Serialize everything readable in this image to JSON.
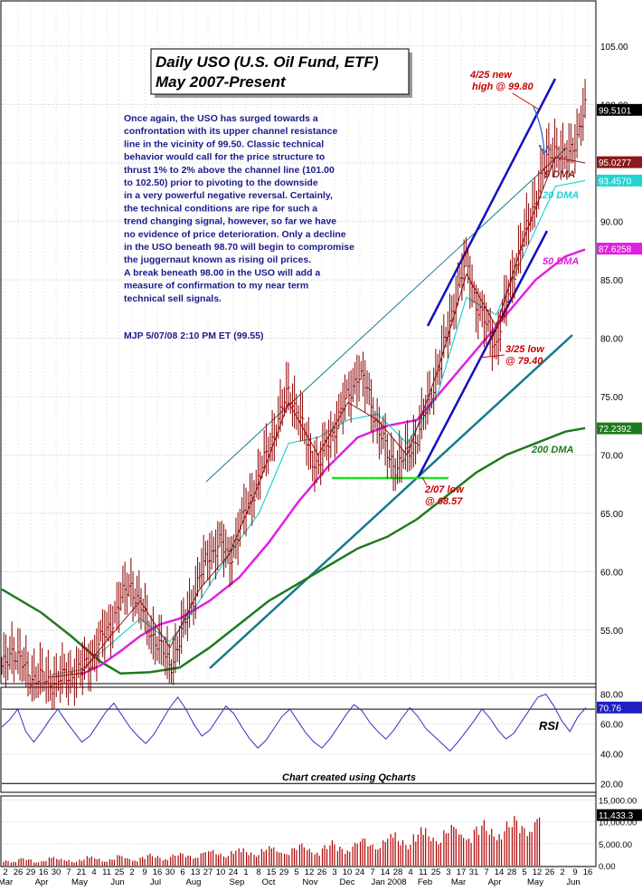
{
  "title_line1": "Daily USO (U.S. Oil Fund, ETF)",
  "title_line2": "May 2007-Present",
  "commentary": [
    "Once again, the USO has surged towards a",
    "confrontation with its upper channel resistance",
    "line in the vicinity of 99.50. Classic technical",
    "behavior would call for the price structure to",
    "thrust 1% to 2% above the channel line (101.00",
    "to 102.50) prior to pivoting to the downside",
    "in a very powerful negative reversal. Certainly,",
    "the technical conditions are ripe for such a",
    "trend changing signal, however, so far we have",
    "no evidence of price deterioration. Only a decline",
    "in the USO beneath 98.70 will begin to compromise",
    "the juggernaut known as rising oil prices.",
    "A break beneath 98.00 in the USO will add a",
    "measure of confirmation to my near term",
    "technical sell signals."
  ],
  "signature": "MJP  5/07/08  2:10 PM ET  (99.55)",
  "footer_credit": "Chart created using Qcharts",
  "colors": {
    "price_bar": "#8b0000",
    "dma9": "#8b1a1a",
    "dma20": "#22d3d3",
    "dma50": "#e020e0",
    "dma200": "#1f7a1f",
    "channel": "#1010c0",
    "long_trend": "#157a8a",
    "support": "#22e022",
    "annotation": "#cc0000",
    "rsi": "#3030c0",
    "volume": "#b00000"
  },
  "chart_data": [
    {
      "type": "candlestick",
      "panel": "price",
      "title": "Daily USO (U.S. Oil Fund, ETF) May 2007-Present",
      "ylim": [
        50.5,
        108.8
      ],
      "yticks": [
        "105.00",
        "100.00",
        "95.00",
        "90.00",
        "85.00",
        "80.00",
        "75.00",
        "70.00",
        "65.00",
        "60.00",
        "55.00"
      ],
      "last_values": [
        {
          "label": "99.5101",
          "color": "#000000",
          "value": 99.51
        },
        {
          "label": "95.0277",
          "color": "#8b1a1a",
          "value": 95.03
        },
        {
          "label": "93.4570",
          "color": "#22d3d3",
          "value": 93.46
        },
        {
          "label": "87.6258",
          "color": "#e020e0",
          "value": 87.63
        },
        {
          "label": "72.2392",
          "color": "#1f7a1f",
          "value": 72.24
        }
      ],
      "x_axis_dates": [
        "2",
        "26",
        "29",
        "16",
        "30",
        "7",
        "21",
        "4",
        "11",
        "25",
        "2",
        "9",
        "16",
        "30",
        "6",
        "13",
        "27",
        "10",
        "24",
        "1",
        "8",
        "15",
        "29",
        "5",
        "12",
        "26",
        "3",
        "10",
        "24",
        "7",
        "14",
        "28",
        "4",
        "11",
        "25",
        "3",
        "17",
        "31",
        "7",
        "14",
        "28",
        "5",
        "12",
        "26",
        "2",
        "9",
        "16"
      ],
      "x_axis_months": [
        "Mar",
        "Apr",
        "May",
        "Jun",
        "Jul",
        "Aug",
        "Sep",
        "Oct",
        "Nov",
        "Dec",
        "Jan 2008",
        "Feb",
        "Mar",
        "Apr",
        "May",
        "Jun"
      ],
      "price_path": [
        [
          0.0,
          51.5
        ],
        [
          0.02,
          53.4
        ],
        [
          0.04,
          52.0
        ],
        [
          0.06,
          51.0
        ],
        [
          0.08,
          50.8
        ],
        [
          0.1,
          50.5
        ],
        [
          0.12,
          50.8
        ],
        [
          0.14,
          51.2
        ],
        [
          0.16,
          51.5
        ],
        [
          0.18,
          52.5
        ],
        [
          0.2,
          54.0
        ],
        [
          0.22,
          55.5
        ],
        [
          0.24,
          57.5
        ],
        [
          0.26,
          59.0
        ],
        [
          0.28,
          57.0
        ],
        [
          0.3,
          55.0
        ],
        [
          0.32,
          53.5
        ],
        [
          0.34,
          52.0
        ],
        [
          0.36,
          54.0
        ],
        [
          0.38,
          57.0
        ],
        [
          0.4,
          59.5
        ],
        [
          0.42,
          61.5
        ],
        [
          0.44,
          62.5
        ],
        [
          0.46,
          61.0
        ],
        [
          0.48,
          63.5
        ],
        [
          0.5,
          66.0
        ],
        [
          0.52,
          68.0
        ],
        [
          0.54,
          70.5
        ],
        [
          0.56,
          73.0
        ],
        [
          0.58,
          75.5
        ],
        [
          0.6,
          73.5
        ],
        [
          0.62,
          70.5
        ],
        [
          0.64,
          69.0
        ],
        [
          0.66,
          71.0
        ],
        [
          0.68,
          73.0
        ],
        [
          0.7,
          75.0
        ],
        [
          0.72,
          77.0
        ],
        [
          0.74,
          75.5
        ],
        [
          0.76,
          72.5
        ],
        [
          0.78,
          70.0
        ],
        [
          0.8,
          69.0
        ],
        [
          0.82,
          70.0
        ],
        [
          0.84,
          71.5
        ],
        [
          0.86,
          74.0
        ],
        [
          0.88,
          77.0
        ],
        [
          0.9,
          80.0
        ],
        [
          0.92,
          84.0
        ],
        [
          0.94,
          86.5
        ],
        [
          0.96,
          83.0
        ],
        [
          0.98,
          81.0
        ],
        [
          1.0,
          79.5
        ],
        [
          1.02,
          83.0
        ],
        [
          1.04,
          86.5
        ],
        [
          1.06,
          89.0
        ],
        [
          1.08,
          92.0
        ],
        [
          1.1,
          95.0
        ],
        [
          1.12,
          96.5
        ],
        [
          1.14,
          95.0
        ],
        [
          1.16,
          97.0
        ],
        [
          1.18,
          99.5
        ]
      ],
      "annotations": [
        {
          "text_lines": [
            "4/25 new",
            "high @ 99.80"
          ],
          "value": 99.8
        },
        {
          "text_lines": [
            "3/25 low",
            "@ 79.40"
          ],
          "value": 79.4
        },
        {
          "text_lines": [
            "2/07 low",
            "@ 68.57"
          ],
          "value": 68.57
        }
      ],
      "series_labels": [
        {
          "name": "9 DMA"
        },
        {
          "name": "20 DMA"
        },
        {
          "name": "50 DMA"
        },
        {
          "name": "200 DMA"
        }
      ],
      "dma200_path": [
        [
          0.0,
          58.5
        ],
        [
          0.08,
          56.5
        ],
        [
          0.14,
          54.5
        ],
        [
          0.2,
          52.3
        ],
        [
          0.24,
          51.3
        ],
        [
          0.3,
          51.4
        ],
        [
          0.36,
          51.8
        ],
        [
          0.42,
          53.5
        ],
        [
          0.48,
          55.5
        ],
        [
          0.54,
          57.5
        ],
        [
          0.6,
          59.0
        ],
        [
          0.66,
          60.5
        ],
        [
          0.72,
          62.0
        ],
        [
          0.78,
          63.0
        ],
        [
          0.84,
          64.5
        ],
        [
          0.9,
          66.5
        ],
        [
          0.96,
          68.5
        ],
        [
          1.02,
          70.0
        ],
        [
          1.08,
          71.0
        ],
        [
          1.14,
          72.0
        ],
        [
          1.18,
          72.3
        ]
      ],
      "dma50_path": [
        [
          0.16,
          51.2
        ],
        [
          0.2,
          52.0
        ],
        [
          0.24,
          53.2
        ],
        [
          0.28,
          54.5
        ],
        [
          0.32,
          55.5
        ],
        [
          0.36,
          56.0
        ],
        [
          0.42,
          57.5
        ],
        [
          0.48,
          59.5
        ],
        [
          0.54,
          62.5
        ],
        [
          0.6,
          66.0
        ],
        [
          0.66,
          69.0
        ],
        [
          0.72,
          71.5
        ],
        [
          0.78,
          72.5
        ],
        [
          0.84,
          73.0
        ],
        [
          0.9,
          76.0
        ],
        [
          0.96,
          79.0
        ],
        [
          1.02,
          82.0
        ],
        [
          1.08,
          85.0
        ],
        [
          1.14,
          87.0
        ],
        [
          1.18,
          87.6
        ]
      ],
      "dma20_path": [
        [
          0.1,
          51.2
        ],
        [
          0.16,
          51.6
        ],
        [
          0.22,
          53.8
        ],
        [
          0.28,
          56.0
        ],
        [
          0.34,
          54.0
        ],
        [
          0.4,
          57.5
        ],
        [
          0.46,
          61.5
        ],
        [
          0.52,
          65.0
        ],
        [
          0.58,
          71.0
        ],
        [
          0.64,
          71.5
        ],
        [
          0.7,
          73.0
        ],
        [
          0.76,
          73.5
        ],
        [
          0.82,
          71.0
        ],
        [
          0.88,
          75.0
        ],
        [
          0.94,
          83.5
        ],
        [
          1.0,
          82.0
        ],
        [
          1.06,
          87.5
        ],
        [
          1.12,
          93.0
        ],
        [
          1.18,
          93.5
        ]
      ],
      "dma9_path": [
        [
          0.1,
          51.0
        ],
        [
          0.16,
          51.3
        ],
        [
          0.22,
          54.5
        ],
        [
          0.28,
          57.5
        ],
        [
          0.34,
          53.5
        ],
        [
          0.4,
          58.5
        ],
        [
          0.46,
          61.5
        ],
        [
          0.52,
          67.5
        ],
        [
          0.58,
          74.5
        ],
        [
          0.64,
          70.0
        ],
        [
          0.7,
          74.5
        ],
        [
          0.76,
          73.0
        ],
        [
          0.82,
          70.0
        ],
        [
          0.88,
          77.0
        ],
        [
          0.94,
          85.5
        ],
        [
          1.0,
          81.0
        ],
        [
          1.06,
          89.0
        ],
        [
          1.12,
          95.5
        ],
        [
          1.18,
          95.0
        ]
      ]
    },
    {
      "type": "line",
      "panel": "rsi",
      "label": "RSI",
      "last_value_label": "70.76",
      "ylim": [
        15,
        84
      ],
      "yticks": [
        "80.00",
        "60.00",
        "40.00",
        "20.00"
      ],
      "reference_line": 70,
      "values": [
        58,
        63,
        70,
        55,
        48,
        55,
        63,
        70,
        62,
        55,
        48,
        52,
        60,
        68,
        74,
        66,
        58,
        52,
        47,
        53,
        62,
        71,
        78,
        70,
        60,
        52,
        56,
        64,
        72,
        67,
        58,
        50,
        44,
        49,
        57,
        65,
        70,
        62,
        54,
        48,
        44,
        50,
        58,
        66,
        73,
        69,
        61,
        55,
        50,
        56,
        64,
        71,
        65,
        57,
        52,
        47,
        42,
        48,
        55,
        62,
        70,
        64,
        56,
        50,
        54,
        62,
        70,
        78,
        80,
        72,
        62,
        55,
        65,
        71
      ]
    },
    {
      "type": "bar",
      "panel": "volume",
      "last_value_label": "11,433.3",
      "ylim": [
        0,
        15500
      ],
      "yticks": [
        "15,000.00",
        "10,000.00",
        "5,000.00",
        "0.00"
      ],
      "values": [
        1200,
        900,
        1800,
        1500,
        800,
        1100,
        2000,
        1600,
        1300,
        900,
        1400,
        2200,
        1700,
        1000,
        1500,
        2500,
        1800,
        1200,
        2000,
        2800,
        2200,
        1500,
        2600,
        3000,
        2400,
        1900,
        3200,
        3600,
        2800,
        2200,
        3400,
        4000,
        3100,
        2500,
        3800,
        4500,
        3300,
        2800,
        4200,
        5200,
        3900,
        3000,
        4700,
        5800,
        4400,
        3500,
        5400,
        6500,
        5000,
        4100,
        6200,
        7600,
        5800,
        4800,
        7200,
        8800,
        6700,
        5600,
        8200,
        9600,
        7500,
        6400,
        9100,
        10500,
        8400,
        7200,
        10200,
        11500,
        9300,
        8100,
        11433
      ]
    }
  ]
}
